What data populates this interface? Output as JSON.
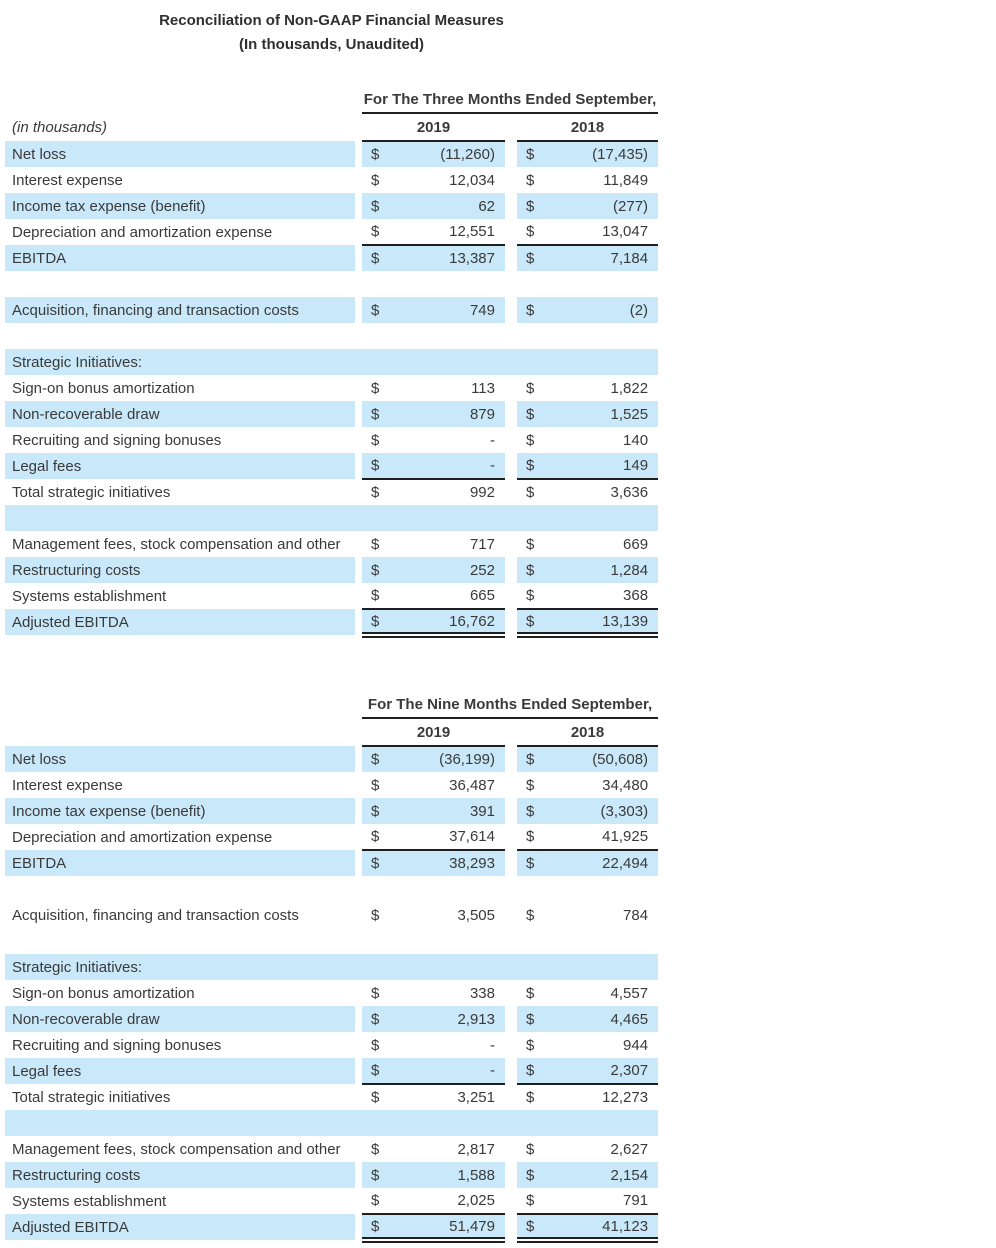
{
  "document": {
    "title_line1": "Reconciliation of Non-GAAP Financial Measures",
    "title_line2": "(In thousands, Unaudited)"
  },
  "currency_symbol": "$",
  "colors": {
    "highlight": "#c9e8f9",
    "text": "#3a3a3a",
    "title_text": "#2f2f2f",
    "border": "#1f1f1f"
  },
  "tables": [
    {
      "period_header": "For The Three Months Ended September,",
      "left_note": "(in thousands)",
      "columns": [
        "2019",
        "2018"
      ],
      "rows": [
        {
          "type": "data",
          "shade": true,
          "label": "Net loss",
          "values": [
            "(11,260)",
            "(17,435)"
          ]
        },
        {
          "type": "data",
          "shade": false,
          "label": "Interest expense",
          "values": [
            "12,034",
            "11,849"
          ]
        },
        {
          "type": "data",
          "shade": true,
          "label": "Income tax expense (benefit)",
          "values": [
            "62",
            "(277)"
          ]
        },
        {
          "type": "data",
          "shade": false,
          "label": "Depreciation and amortization expense",
          "values": [
            "12,551",
            "13,047"
          ]
        },
        {
          "type": "data",
          "shade": true,
          "label": "EBITDA",
          "values": [
            "13,387",
            "7,184"
          ],
          "rule_top": true
        },
        {
          "type": "spacer",
          "shade": false
        },
        {
          "type": "data",
          "shade": true,
          "label": "Acquisition, financing and transaction costs",
          "values": [
            "749",
            "(2)"
          ]
        },
        {
          "type": "spacer",
          "shade": false
        },
        {
          "type": "section",
          "shade": true,
          "label": "Strategic Initiatives:"
        },
        {
          "type": "data",
          "shade": false,
          "label": "Sign-on bonus amortization",
          "values": [
            "113",
            "1,822"
          ]
        },
        {
          "type": "data",
          "shade": true,
          "label": "Non-recoverable draw",
          "values": [
            "879",
            "1,525"
          ]
        },
        {
          "type": "data",
          "shade": false,
          "label": "Recruiting and signing bonuses",
          "values": [
            "-",
            "140"
          ]
        },
        {
          "type": "data",
          "shade": true,
          "label": "Legal fees",
          "values": [
            "-",
            "149"
          ]
        },
        {
          "type": "data",
          "shade": false,
          "label": "Total strategic initiatives",
          "values": [
            "992",
            "3,636"
          ],
          "rule_top": true
        },
        {
          "type": "section",
          "shade": true,
          "label": ""
        },
        {
          "type": "data",
          "shade": false,
          "label": "Management fees, stock compensation and other",
          "values": [
            "717",
            "669"
          ]
        },
        {
          "type": "data",
          "shade": true,
          "label": "Restructuring costs",
          "values": [
            "252",
            "1,284"
          ]
        },
        {
          "type": "data",
          "shade": false,
          "label": "Systems establishment",
          "values": [
            "665",
            "368"
          ]
        },
        {
          "type": "data",
          "shade": true,
          "label": "Adjusted EBITDA",
          "values": [
            "16,762",
            "13,139"
          ],
          "rule_top": true,
          "rule_double_bottom": true
        }
      ]
    },
    {
      "period_header": "For The Nine Months Ended September,",
      "left_note": "",
      "columns": [
        "2019",
        "2018"
      ],
      "rows": [
        {
          "type": "data",
          "shade": true,
          "label": "Net loss",
          "values": [
            "(36,199)",
            "(50,608)"
          ]
        },
        {
          "type": "data",
          "shade": false,
          "label": "Interest expense",
          "values": [
            "36,487",
            "34,480"
          ]
        },
        {
          "type": "data",
          "shade": true,
          "label": "Income tax expense (benefit)",
          "values": [
            "391",
            "(3,303)"
          ]
        },
        {
          "type": "data",
          "shade": false,
          "label": "Depreciation and amortization expense",
          "values": [
            "37,614",
            "41,925"
          ]
        },
        {
          "type": "data",
          "shade": true,
          "label": "EBITDA",
          "values": [
            "38,293",
            "22,494"
          ],
          "rule_top": true
        },
        {
          "type": "spacer",
          "shade": false
        },
        {
          "type": "data",
          "shade": false,
          "label": "Acquisition, financing and transaction costs",
          "values": [
            "3,505",
            "784"
          ]
        },
        {
          "type": "spacer",
          "shade": false
        },
        {
          "type": "section",
          "shade": true,
          "label": "Strategic Initiatives:"
        },
        {
          "type": "data",
          "shade": false,
          "label": "Sign-on bonus amortization",
          "values": [
            "338",
            "4,557"
          ]
        },
        {
          "type": "data",
          "shade": true,
          "label": "Non-recoverable draw",
          "values": [
            "2,913",
            "4,465"
          ]
        },
        {
          "type": "data",
          "shade": false,
          "label": "Recruiting and signing bonuses",
          "values": [
            "-",
            "944"
          ]
        },
        {
          "type": "data",
          "shade": true,
          "label": "Legal fees",
          "values": [
            "-",
            "2,307"
          ]
        },
        {
          "type": "data",
          "shade": false,
          "label": "Total strategic initiatives",
          "values": [
            "3,251",
            "12,273"
          ],
          "rule_top": true
        },
        {
          "type": "section",
          "shade": true,
          "label": ""
        },
        {
          "type": "data",
          "shade": false,
          "label": "Management fees, stock compensation and other",
          "values": [
            "2,817",
            "2,627"
          ]
        },
        {
          "type": "data",
          "shade": true,
          "label": "Restructuring costs",
          "values": [
            "1,588",
            "2,154"
          ]
        },
        {
          "type": "data",
          "shade": false,
          "label": "Systems establishment",
          "values": [
            "2,025",
            "791"
          ]
        },
        {
          "type": "data",
          "shade": true,
          "label": "Adjusted EBITDA",
          "values": [
            "51,479",
            "41,123"
          ],
          "rule_top": true,
          "rule_double_bottom": true
        }
      ]
    }
  ]
}
